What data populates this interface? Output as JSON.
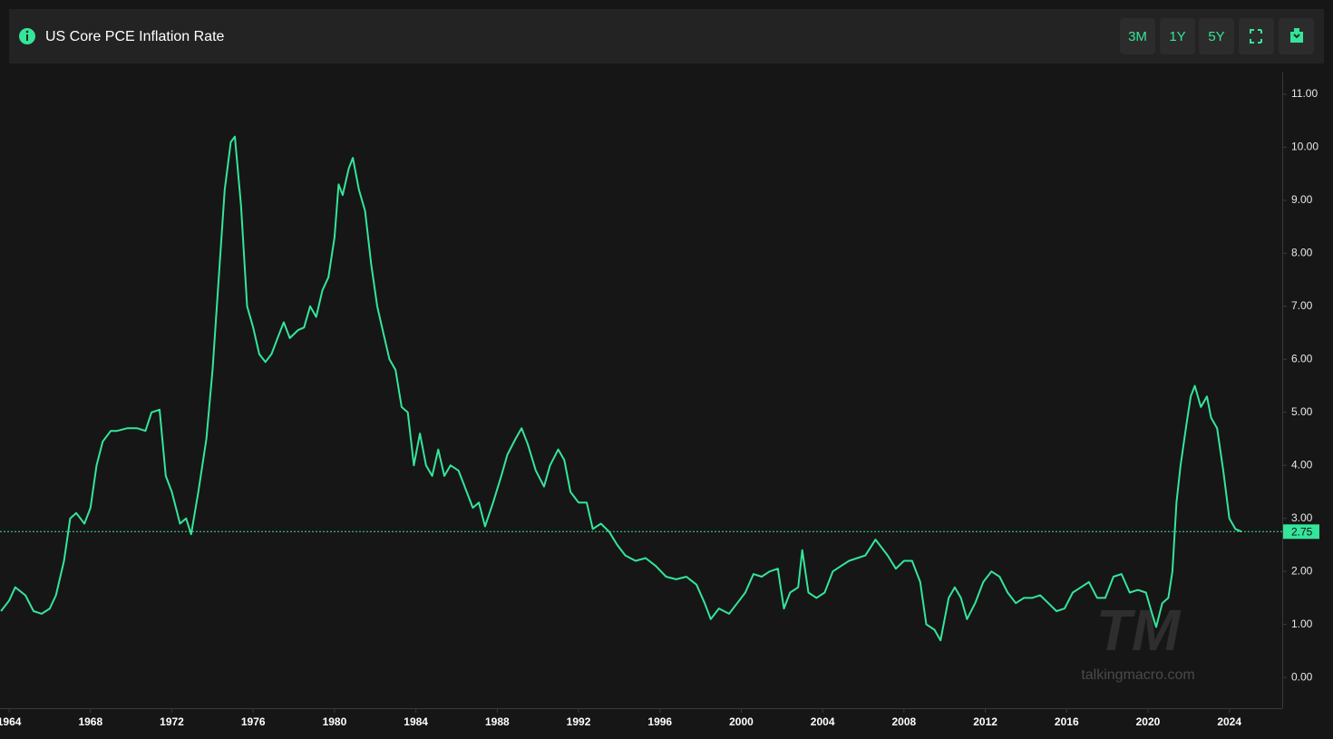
{
  "header": {
    "title": "US Core PCE Inflation Rate",
    "buttons": [
      "3M",
      "1Y",
      "5Y"
    ]
  },
  "watermark": {
    "logo": "TM",
    "site": "talkingmacro.com"
  },
  "chart_data": {
    "type": "line",
    "color": "#34e59a",
    "x": [
      1963.6,
      1964.0,
      1964.3,
      1964.8,
      1965.2,
      1965.6,
      1966.0,
      1966.3,
      1966.7,
      1967.0,
      1967.3,
      1967.7,
      1968.0,
      1968.3,
      1968.6,
      1969.0,
      1969.3,
      1969.8,
      1970.3,
      1970.7,
      1971.0,
      1971.4,
      1971.7,
      1972.0,
      1972.4,
      1972.7,
      1972.95,
      1973.3,
      1973.7,
      1974.0,
      1974.3,
      1974.6,
      1974.9,
      1975.1,
      1975.4,
      1975.7,
      1976.0,
      1976.3,
      1976.6,
      1976.9,
      1977.2,
      1977.5,
      1977.8,
      1978.2,
      1978.5,
      1978.8,
      1979.1,
      1979.4,
      1979.7,
      1980.0,
      1980.2,
      1980.4,
      1980.7,
      1980.9,
      1981.2,
      1981.5,
      1981.8,
      1982.1,
      1982.4,
      1982.7,
      1983.0,
      1983.3,
      1983.6,
      1983.9,
      1984.2,
      1984.5,
      1984.8,
      1985.1,
      1985.4,
      1985.7,
      1986.1,
      1986.5,
      1986.8,
      1987.1,
      1987.4,
      1987.8,
      1988.2,
      1988.5,
      1988.9,
      1989.2,
      1989.5,
      1989.9,
      1990.3,
      1990.6,
      1991.0,
      1991.3,
      1991.6,
      1992.0,
      1992.4,
      1992.7,
      1993.1,
      1993.5,
      1993.9,
      1994.3,
      1994.8,
      1995.3,
      1995.8,
      1996.3,
      1996.8,
      1997.3,
      1997.8,
      1998.2,
      1998.5,
      1998.9,
      1999.4,
      1999.8,
      2000.2,
      2000.6,
      2001.0,
      2001.4,
      2001.8,
      2002.1,
      2002.4,
      2002.8,
      2003.0,
      2003.3,
      2003.7,
      2004.1,
      2004.5,
      2004.9,
      2005.3,
      2005.7,
      2006.1,
      2006.6,
      2006.9,
      2007.2,
      2007.6,
      2008.0,
      2008.4,
      2008.8,
      2009.1,
      2009.5,
      2009.8,
      2010.2,
      2010.5,
      2010.8,
      2011.1,
      2011.5,
      2011.9,
      2012.3,
      2012.7,
      2013.1,
      2013.5,
      2013.9,
      2014.3,
      2014.7,
      2015.1,
      2015.5,
      2015.9,
      2016.3,
      2016.7,
      2017.1,
      2017.5,
      2017.9,
      2018.3,
      2018.7,
      2019.1,
      2019.5,
      2019.9,
      2020.2,
      2020.4,
      2020.7,
      2021.0,
      2021.2,
      2021.4,
      2021.6,
      2021.9,
      2022.1,
      2022.3,
      2022.6,
      2022.9,
      2023.1,
      2023.4,
      2023.7,
      2024.0,
      2024.3,
      2024.6
    ],
    "values": [
      1.25,
      1.45,
      1.7,
      1.55,
      1.25,
      1.2,
      1.3,
      1.55,
      2.2,
      3.0,
      3.1,
      2.9,
      3.2,
      4.0,
      4.45,
      4.65,
      4.65,
      4.7,
      4.7,
      4.65,
      5.0,
      5.05,
      3.8,
      3.5,
      2.9,
      3.0,
      2.7,
      3.5,
      4.5,
      5.8,
      7.5,
      9.2,
      10.1,
      10.2,
      8.9,
      7.0,
      6.6,
      6.1,
      5.95,
      6.1,
      6.4,
      6.7,
      6.4,
      6.55,
      6.6,
      7.0,
      6.8,
      7.3,
      7.55,
      8.3,
      9.3,
      9.1,
      9.6,
      9.8,
      9.2,
      8.8,
      7.8,
      7.0,
      6.5,
      6.0,
      5.8,
      5.1,
      5.0,
      4.0,
      4.6,
      4.0,
      3.8,
      4.3,
      3.8,
      4.0,
      3.9,
      3.5,
      3.2,
      3.3,
      2.85,
      3.3,
      3.8,
      4.2,
      4.5,
      4.7,
      4.4,
      3.9,
      3.6,
      4.0,
      4.3,
      4.1,
      3.5,
      3.3,
      3.3,
      2.8,
      2.9,
      2.75,
      2.5,
      2.3,
      2.2,
      2.25,
      2.1,
      1.9,
      1.85,
      1.9,
      1.75,
      1.4,
      1.1,
      1.3,
      1.2,
      1.4,
      1.6,
      1.95,
      1.9,
      2.0,
      2.05,
      1.3,
      1.6,
      1.7,
      2.4,
      1.6,
      1.5,
      1.6,
      2.0,
      2.1,
      2.2,
      2.25,
      2.3,
      2.6,
      2.45,
      2.3,
      2.05,
      2.2,
      2.2,
      1.8,
      1.0,
      0.9,
      0.7,
      1.5,
      1.7,
      1.5,
      1.1,
      1.4,
      1.8,
      2.0,
      1.9,
      1.6,
      1.4,
      1.5,
      1.5,
      1.55,
      1.4,
      1.25,
      1.3,
      1.6,
      1.7,
      1.8,
      1.5,
      1.5,
      1.9,
      1.95,
      1.6,
      1.65,
      1.6,
      1.2,
      0.95,
      1.4,
      1.5,
      2.0,
      3.3,
      4.0,
      4.8,
      5.3,
      5.5,
      5.1,
      5.3,
      4.9,
      4.7,
      3.9,
      3.0,
      2.8,
      2.75
    ],
    "current_value": 2.75,
    "xlim": [
      1963.55,
      2026.6
    ],
    "xticks": [
      1964,
      1968,
      1972,
      1976,
      1980,
      1984,
      1988,
      1992,
      1996,
      2000,
      2004,
      2008,
      2012,
      2016,
      2020,
      2024
    ],
    "ylim": [
      -0.58,
      11.41
    ],
    "yticks": [
      {
        "value": 0,
        "label": "0.00"
      },
      {
        "value": 1,
        "label": "1.00"
      },
      {
        "value": 2,
        "label": "2.00"
      },
      {
        "value": 3,
        "label": "3.00"
      },
      {
        "value": 4,
        "label": "4.00"
      },
      {
        "value": 5,
        "label": "5.00"
      },
      {
        "value": 6,
        "label": "6.00"
      },
      {
        "value": 7,
        "label": "7.00"
      },
      {
        "value": 8,
        "label": "8.00"
      },
      {
        "value": 9,
        "label": "9.00"
      },
      {
        "value": 10,
        "label": "10.00"
      },
      {
        "value": 11,
        "label": "11.00"
      }
    ]
  }
}
